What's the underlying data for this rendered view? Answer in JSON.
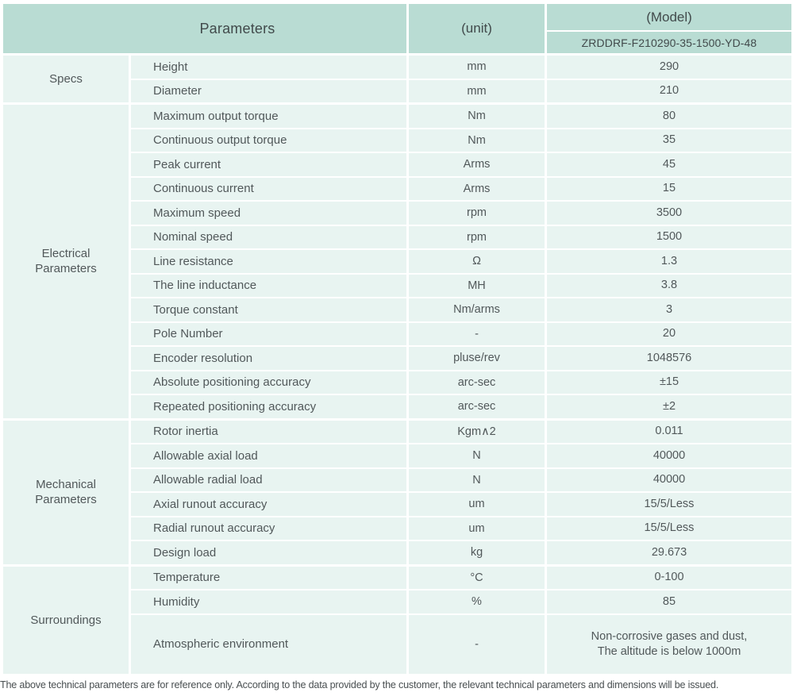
{
  "header": {
    "parameters_label": "Parameters",
    "unit_label": "(unit)",
    "model_label": "(Model)",
    "model_value": "ZRDDRF-F210290-35-1500-YD-48"
  },
  "sections": [
    {
      "label": "Specs",
      "rows": [
        {
          "name": "Height",
          "unit": "mm",
          "value": "290"
        },
        {
          "name": "Diameter",
          "unit": "mm",
          "value": "210"
        }
      ]
    },
    {
      "label": "Electrical\nParameters",
      "rows": [
        {
          "name": "Maximum output torque",
          "unit": "Nm",
          "value": "80"
        },
        {
          "name": "Continuous output torque",
          "unit": "Nm",
          "value": "35"
        },
        {
          "name": "Peak current",
          "unit": "Arms",
          "value": "45"
        },
        {
          "name": "Continuous current",
          "unit": "Arms",
          "value": "15"
        },
        {
          "name": "Maximum speed",
          "unit": "rpm",
          "value": "3500"
        },
        {
          "name": "Nominal speed",
          "unit": "rpm",
          "value": "1500"
        },
        {
          "name": "Line resistance",
          "unit": "Ω",
          "value": "1.3"
        },
        {
          "name": "The line inductance",
          "unit": "MH",
          "value": "3.8"
        },
        {
          "name": "Torque constant",
          "unit": "Nm/arms",
          "value": "3"
        },
        {
          "name": "Pole Number",
          "unit": "-",
          "value": "20"
        },
        {
          "name": "Encoder resolution",
          "unit": "pluse/rev",
          "value": "1048576"
        },
        {
          "name": "Absolute positioning accuracy",
          "unit": "arc-sec",
          "value": "±15"
        },
        {
          "name": "Repeated positioning accuracy",
          "unit": "arc-sec",
          "value": "±2"
        }
      ]
    },
    {
      "label": "Mechanical\nParameters",
      "rows": [
        {
          "name": "Rotor inertia",
          "unit": "Kgm∧2",
          "value": "0.011"
        },
        {
          "name": "Allowable axial load",
          "unit": "N",
          "value": "40000"
        },
        {
          "name": "Allowable radial load",
          "unit": "N",
          "value": "40000"
        },
        {
          "name": "Axial runout accuracy",
          "unit": "um",
          "value": "15/5/Less"
        },
        {
          "name": "Radial runout accuracy",
          "unit": "um",
          "value": "15/5/Less"
        },
        {
          "name": "Design load",
          "unit": "kg",
          "value": "29.673"
        }
      ]
    },
    {
      "label": "Surroundings",
      "rows": [
        {
          "name": "Temperature",
          "unit": "°C",
          "value": "0-100"
        },
        {
          "name": "Humidity",
          "unit": "%",
          "value": "85"
        },
        {
          "name": "Atmospheric environment",
          "unit": "-",
          "value_lines": [
            "Non-corrosive gases and dust,",
            "The altitude is below 1000m"
          ],
          "tall": true
        }
      ]
    }
  ],
  "footer": {
    "note": "The above technical parameters are for reference only. According to the data provided by the customer, the relevant technical parameters and dimensions will be issued."
  },
  "colors": {
    "header_bg": "#b9dcd3",
    "cell_bg": "#e8f4f1",
    "text": "#51585a",
    "page_bg": "#ffffff"
  }
}
